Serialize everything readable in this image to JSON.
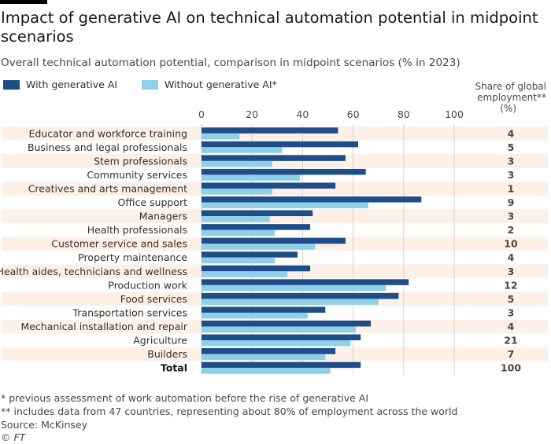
{
  "header": {
    "title": "Impact of generative AI on technical automation potential in midpoint scenarios",
    "subtitle": "Overall technical automation potential, comparison in midpoint scenarios (% in 2023)"
  },
  "legend": {
    "with_label": "With generative AI",
    "without_label": "Without generative AI*"
  },
  "share_header": {
    "line1": "Share of global",
    "line2": "employment**",
    "line3": "(%)"
  },
  "colors": {
    "with": "#1e4e89",
    "without": "#8ed0e9",
    "row_band": "#fdf0e6",
    "grid": "#d8d2cc"
  },
  "chart_data": {
    "type": "bar",
    "orientation": "horizontal",
    "categories": [
      "Educator and workforce training",
      "Business and legal professionals",
      "Stem professionals",
      "Community services",
      "Creatives and arts management",
      "Office support",
      "Managers",
      "Health professionals",
      "Customer service and sales",
      "Property maintenance",
      "Health aides, technicians and wellness",
      "Production work",
      "Food services",
      "Transportation services",
      "Mechanical installation and repair",
      "Agriculture",
      "Builders",
      "Total"
    ],
    "series": [
      {
        "name": "With generative AI",
        "values": [
          54,
          62,
          57,
          65,
          53,
          87,
          44,
          43,
          57,
          38,
          43,
          82,
          78,
          49,
          67,
          63,
          53,
          63
        ]
      },
      {
        "name": "Without generative AI*",
        "values": [
          15,
          32,
          28,
          39,
          28,
          66,
          27,
          29,
          45,
          29,
          34,
          73,
          70,
          42,
          61,
          59,
          49,
          51
        ]
      }
    ],
    "share_of_global_employment": [
      "4",
      "5",
      "3",
      "3",
      "1",
      "9",
      "3",
      "2",
      "10",
      "4",
      "3",
      "12",
      "5",
      "3",
      "4",
      "21",
      "7",
      "100"
    ],
    "xlim": [
      0,
      100
    ],
    "xticks": [
      "0",
      "20",
      "40",
      "60",
      "80",
      "100"
    ],
    "grid": true,
    "legend_position": "top-left"
  },
  "footnotes": {
    "note1": "* previous assessment of work automation before the rise of generative AI",
    "note2": "** includes data from 47 countries, representing about 80% of employment across the world",
    "source": "Source: McKinsey",
    "credit": "© FT"
  }
}
